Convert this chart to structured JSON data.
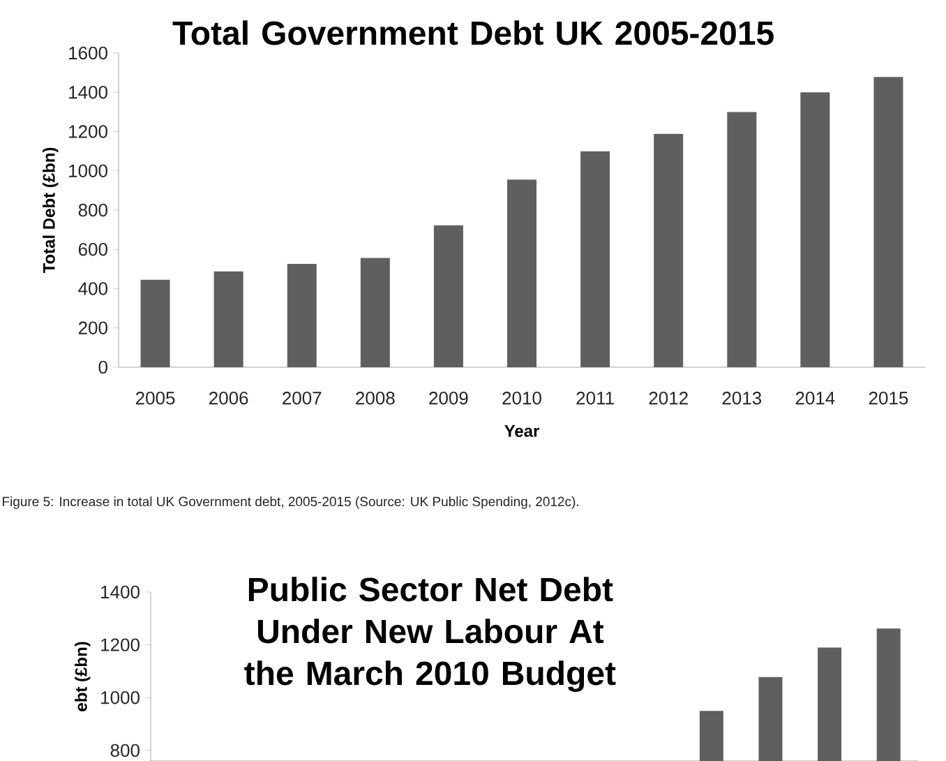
{
  "chart_data": [
    {
      "type": "bar",
      "title": "Total Government Debt UK 2005-2015",
      "xlabel": "Year",
      "ylabel": "Total Debt (£bn)",
      "categories": [
        "2005",
        "2006",
        "2007",
        "2008",
        "2009",
        "2010",
        "2011",
        "2012",
        "2013",
        "2014",
        "2015"
      ],
      "values": [
        445,
        488,
        526,
        556,
        723,
        955,
        1099,
        1188,
        1299,
        1400,
        1478
      ],
      "color": "#5f5f5f",
      "ylim": [
        0,
        1600
      ],
      "yticks": [
        0,
        200,
        400,
        600,
        800,
        1000,
        1200,
        1400,
        1600
      ],
      "annotations": [
        "Figure 5: Increase in total UK Government debt, 2005-2015 (Source: UK Public Spending, 2012c)."
      ]
    },
    {
      "type": "bar",
      "title": "Public Sector Net Debt Under New Labour At the March 2010 Budget",
      "ylabel": "ebt (£bn)",
      "categories": [
        null,
        null,
        null,
        null,
        null,
        null,
        null,
        null,
        null,
        null,
        null,
        null,
        null
      ],
      "values": [
        null,
        null,
        null,
        null,
        null,
        null,
        null,
        null,
        null,
        950,
        1078,
        1190,
        1262
      ],
      "color": "#5f5f5f",
      "ylim": [
        760,
        1400
      ],
      "yticks": [
        800,
        1000,
        1200,
        1400
      ]
    }
  ]
}
